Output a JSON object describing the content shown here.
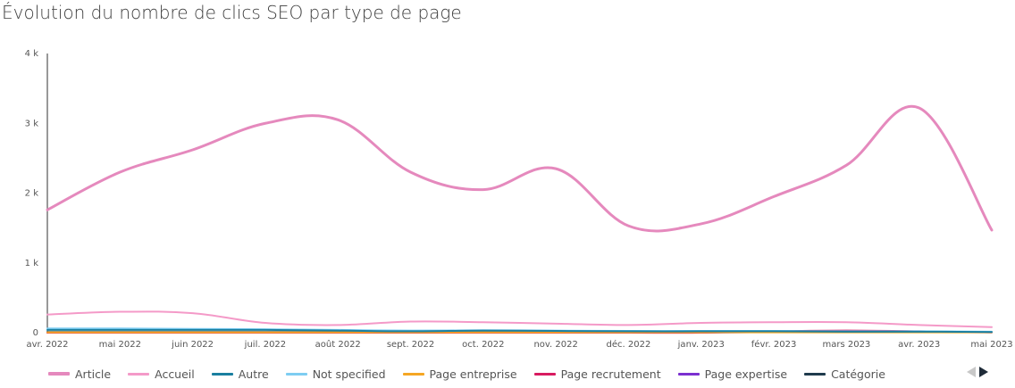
{
  "chart_data": {
    "type": "line",
    "title": "Évolution du nombre de clics SEO par type de page",
    "categories": [
      "avr. 2022",
      "mai 2022",
      "juin 2022",
      "juil. 2022",
      "août 2022",
      "sept. 2022",
      "oct. 2022",
      "nov. 2022",
      "déc. 2022",
      "janv. 2023",
      "févr. 2023",
      "mars 2023",
      "avr. 2023",
      "mai 2023"
    ],
    "y_ticks": [
      {
        "value": 0,
        "label": "0"
      },
      {
        "value": 1000,
        "label": "1 k"
      },
      {
        "value": 2000,
        "label": "2 k"
      },
      {
        "value": 3000,
        "label": "3 k"
      },
      {
        "value": 4000,
        "label": "4 k"
      }
    ],
    "ylim": [
      0,
      4000
    ],
    "grid": false,
    "legend_position": "bottom",
    "series": [
      {
        "name": "Article",
        "color": "#e589bd",
        "width": 3,
        "values": [
          1760,
          2300,
          2620,
          3000,
          3050,
          2300,
          2050,
          2350,
          1530,
          1560,
          1950,
          2400,
          3220,
          1470
        ]
      },
      {
        "name": "Accueil",
        "color": "#f49ac8",
        "width": 2,
        "values": [
          260,
          300,
          280,
          140,
          110,
          160,
          150,
          130,
          110,
          140,
          150,
          150,
          110,
          80
        ]
      },
      {
        "name": "Autre",
        "color": "#1a7fa0",
        "width": 2,
        "values": [
          40,
          40,
          40,
          40,
          30,
          20,
          30,
          25,
          20,
          20,
          20,
          15,
          15,
          10
        ]
      },
      {
        "name": "Not specified",
        "color": "#7ecdf2",
        "width": 2,
        "values": [
          60,
          60,
          55,
          50,
          40,
          30,
          35,
          30,
          25,
          25,
          25,
          20,
          20,
          15
        ]
      },
      {
        "name": "Page entreprise",
        "color": "#f5a623",
        "width": 2,
        "values": [
          5,
          5,
          5,
          5,
          5,
          5,
          5,
          5,
          5,
          5,
          5,
          5,
          5,
          5
        ]
      },
      {
        "name": "Page recrutement",
        "color": "#d81b60",
        "width": 2,
        "values": [
          0,
          0,
          0,
          0,
          0,
          0,
          0,
          0,
          0,
          0,
          20,
          30,
          20,
          5
        ]
      },
      {
        "name": "Page expertise",
        "color": "#7b2fd0",
        "width": 2,
        "values": [
          0,
          0,
          0,
          0,
          0,
          0,
          0,
          0,
          0,
          0,
          10,
          15,
          10,
          5
        ]
      },
      {
        "name": "Catégorie",
        "color": "#1f3b4d",
        "width": 2,
        "values": [
          10,
          10,
          10,
          10,
          10,
          10,
          10,
          10,
          10,
          10,
          10,
          10,
          10,
          10
        ]
      }
    ]
  },
  "pager": {
    "prev_icon": "arrow-left-icon",
    "next_icon": "arrow-right-icon"
  }
}
